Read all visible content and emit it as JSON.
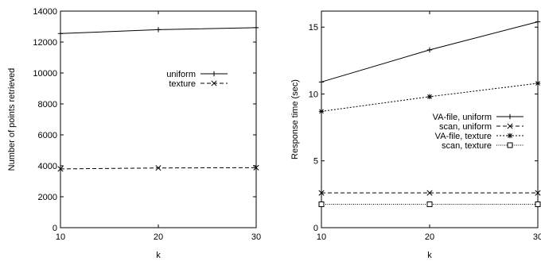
{
  "chart_data": [
    {
      "type": "line",
      "title": "",
      "xlabel": "k",
      "ylabel": "Number of points retrieved",
      "x": [
        10,
        20,
        30
      ],
      "xlim": [
        10,
        30
      ],
      "ylim": [
        0,
        14000
      ],
      "xticks": [
        "10",
        "20",
        "30"
      ],
      "yticks": [
        "0",
        "2000",
        "4000",
        "6000",
        "8000",
        "10000",
        "12000",
        "14000"
      ],
      "grid": false,
      "legend": "center-right",
      "series": [
        {
          "name": "uniform",
          "values": [
            12550,
            12800,
            12930
          ],
          "line": "solid",
          "marker": "plus"
        },
        {
          "name": "texture",
          "values": [
            3800,
            3860,
            3880
          ],
          "line": "dashed",
          "marker": "x"
        }
      ]
    },
    {
      "type": "line",
      "title": "",
      "xlabel": "k",
      "ylabel": "Response time (sec)",
      "x": [
        10,
        20,
        30
      ],
      "xlim": [
        10,
        30
      ],
      "ylim": [
        0,
        16.2
      ],
      "xticks": [
        "10",
        "20",
        "30"
      ],
      "yticks": [
        "0",
        "5",
        "10",
        "15"
      ],
      "grid": false,
      "legend": "center-right",
      "series": [
        {
          "name": "VA-file, uniform",
          "values": [
            10.9,
            13.3,
            15.4
          ],
          "line": "solid",
          "marker": "plus"
        },
        {
          "name": "scan, uniform",
          "values": [
            2.6,
            2.6,
            2.6
          ],
          "line": "dashed",
          "marker": "x"
        },
        {
          "name": "VA-file, texture",
          "values": [
            8.7,
            9.8,
            10.8
          ],
          "line": "dotted",
          "marker": "star"
        },
        {
          "name": "scan, texture",
          "values": [
            1.75,
            1.75,
            1.75
          ],
          "line": "finedotted",
          "marker": "square"
        }
      ]
    }
  ]
}
